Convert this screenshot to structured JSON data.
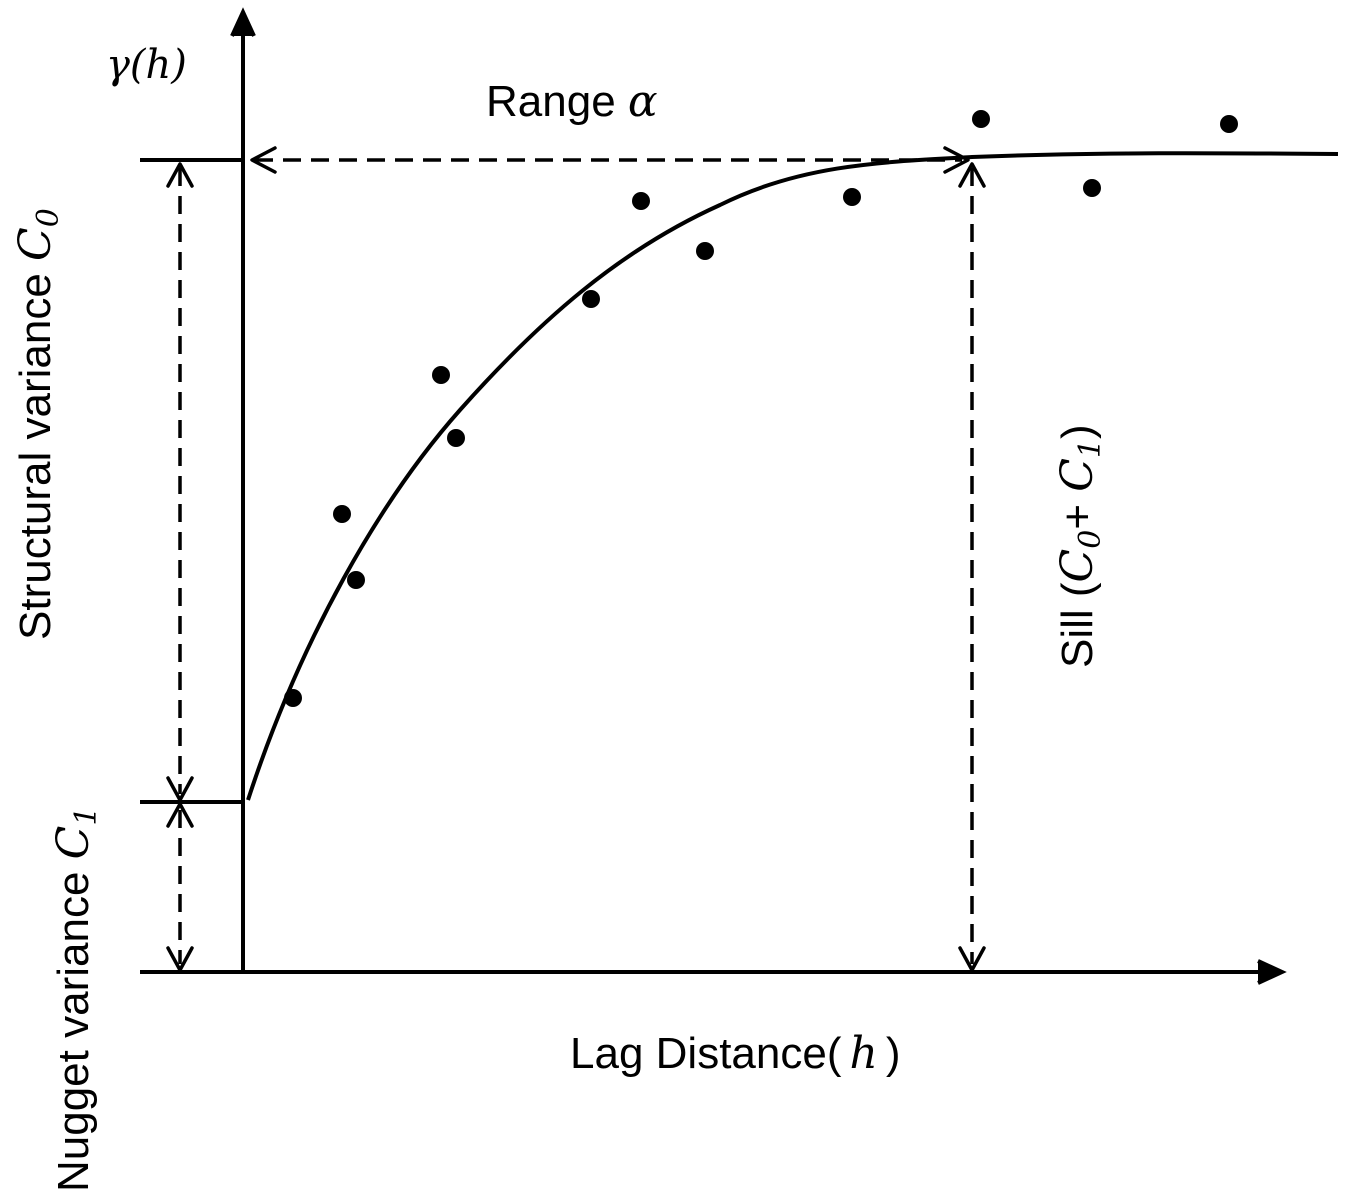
{
  "labels": {
    "y_axis": "γ(h)",
    "x_axis_text": "Lag Distance(",
    "x_axis_var": "h",
    "x_axis_close": ")",
    "range_text": "Range ",
    "range_symbol": "α",
    "structural_text": "Structural variance ",
    "structural_sym": "C",
    "structural_sub": "0",
    "nugget_text": "Nugget variance ",
    "nugget_sym": "C",
    "nugget_sub": "1",
    "sill_text": "Sill (",
    "sill_c0": "C",
    "sill_c0_sub": "0",
    "sill_plus": "+ ",
    "sill_c1": "C",
    "sill_c1_sub": "1",
    "sill_close": ")"
  }
}
